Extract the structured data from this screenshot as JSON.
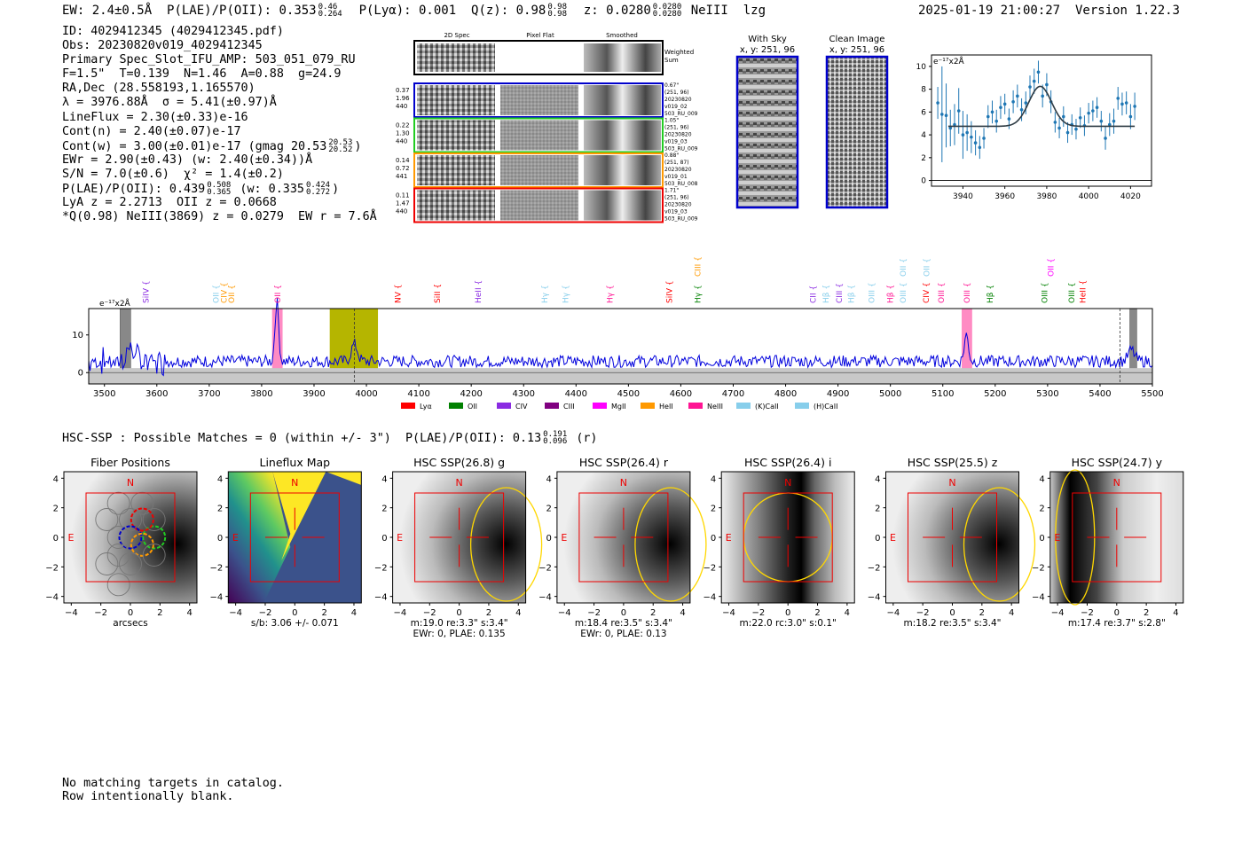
{
  "header": {
    "ew": "EW: 2.4±0.5Å",
    "plae_label": "P(LAE)/P(OII):",
    "plae_value": "0.353",
    "plae_hi": "0.46",
    "plae_lo": "0.264",
    "plya": "P(Lyα): 0.001",
    "qz_label": "Q(z):",
    "qz_value": "0.98",
    "qz_hi": "0.98",
    "qz_lo": "0.98",
    "z_label": "z:",
    "z_value": "0.0280",
    "z_hi": "0.0280",
    "z_lo": "0.0280",
    "line_id": "NeIII",
    "flag": "lzg",
    "datetime": "2025-01-19 21:00:27",
    "version": "Version 1.22.3"
  },
  "info": {
    "id": "ID: 4029412345 (4029412345.pdf)",
    "obs": "Obs: 20230820v019_4029412345",
    "primary": "Primary Spec_Slot_IFU_AMP: 503_051_079_RU",
    "params": "F=1.5\"  T=0.139  N=1.46  A=0.88  g=24.9",
    "radec": "RA,Dec (28.558193,1.165570)",
    "lambda_sigma": "λ = 3976.88Å  σ = 5.41(±0.97)Å",
    "lineflux": "LineFlux = 2.30(±0.33)e-16",
    "cont_n": "Cont(n) = 2.40(±0.07)e-17",
    "cont_w": "Cont(w) = 3.00(±0.01)e-17 (gmag 20.53",
    "gmag_hi": "20.53",
    "gmag_lo": "20.52",
    "ewr": "EWr = 2.90(±0.43) (w: 2.40(±0.34))Å",
    "sn": "S/N = 7.0(±0.6)  χ² = 1.4(±0.2)",
    "plae2": "P(LAE)/P(OII): 0.439",
    "plae2_hi": "0.508",
    "plae2_lo": "0.365",
    "plae2_w": "(w: 0.335",
    "plae2_w_hi": "0.424",
    "plae2_w_lo": "0.272",
    "lya_oii": "LyA z = 2.2713  OII z = 0.0668",
    "qline": "*Q(0.98) NeIII(3869) z = 0.0279  EW r = 7.6Å"
  },
  "cutouts": {
    "col_labels": [
      "2D Spec",
      "Pixel Flat",
      "Smoothed"
    ],
    "weighted_sum": [
      "Weighted",
      "Sum"
    ],
    "rows": [
      {
        "left": [
          "0.37",
          "1.96",
          "440"
        ],
        "right": [
          "0.67\"",
          "(251, 96)",
          "20230820",
          "v019_02",
          "503_RU_009"
        ],
        "color": "#0000cc"
      },
      {
        "left": [
          "0.22",
          "1.30",
          "440"
        ],
        "right": [
          "1.05\"",
          "(251, 96)",
          "20230820",
          "v019_03",
          "503_RU_009"
        ],
        "color": "#22cc22"
      },
      {
        "left": [
          "0.14",
          "0.72",
          "441"
        ],
        "right": [
          "0.88\"",
          "(251, 87)",
          "20230820",
          "v019_01",
          "503_RU_008"
        ],
        "color": "#ff9900"
      },
      {
        "left": [
          "0.11",
          "1.47",
          "440"
        ],
        "right": [
          "1.71\"",
          "(251, 96)",
          "20230820",
          "v019_03",
          "503_RU_009"
        ],
        "color": "#ee0000"
      }
    ],
    "with_sky": [
      "With Sky",
      "x, y: 251, 96"
    ],
    "clean_image": [
      "Clean Image",
      "x, y: 251, 96"
    ]
  },
  "colors": {
    "spectrum": "#0000dd",
    "fit": "#2e3b44",
    "zoom_points": "#1f77b4",
    "yellow_band": "#b5b500",
    "pink_band": "#ff6eb4"
  },
  "chart_data": [
    {
      "type": "line",
      "title": "",
      "ylabel": "e⁻¹⁷x2Å",
      "xlim": [
        3925,
        4030
      ],
      "ylim": [
        -0.5,
        11
      ],
      "xticks": [
        3940,
        3960,
        3980,
        4000,
        4020
      ],
      "yticks": [
        0,
        2,
        4,
        6,
        8,
        10
      ],
      "points": {
        "x": [
          3928,
          3930,
          3932,
          3934,
          3936,
          3938,
          3940,
          3942,
          3944,
          3946,
          3948,
          3950,
          3952,
          3954,
          3956,
          3958,
          3960,
          3962,
          3964,
          3966,
          3968,
          3970,
          3972,
          3974,
          3976,
          3978,
          3980,
          3982,
          3984,
          3986,
          3988,
          3990,
          3992,
          3994,
          3996,
          3998,
          4000,
          4002,
          4004,
          4006,
          4008,
          4010,
          4012,
          4014,
          4016,
          4018,
          4020,
          4022
        ],
        "y": [
          6.8,
          5.8,
          5.7,
          4.6,
          4.9,
          6.1,
          4.0,
          4.2,
          3.8,
          3.3,
          2.9,
          3.7,
          5.6,
          6.0,
          5.2,
          6.4,
          6.7,
          5.4,
          6.9,
          7.4,
          6.2,
          6.8,
          8.2,
          8.7,
          9.5,
          7.4,
          8.4,
          6.9,
          5.1,
          4.6,
          5.6,
          4.2,
          4.9,
          4.5,
          5.5,
          4.8,
          5.9,
          6.1,
          6.4,
          5.2,
          3.7,
          4.9,
          5.2,
          7.2,
          6.7,
          6.8,
          5.6,
          6.5
        ],
        "err": [
          1.4,
          4.2,
          2.8,
          1.6,
          1.8,
          2.0,
          2.1,
          1.6,
          1.4,
          1.1,
          1.0,
          0.9,
          1.0,
          1.0,
          1.0,
          1.0,
          0.9,
          0.9,
          1.0,
          1.0,
          1.0,
          1.0,
          1.0,
          1.1,
          1.0,
          1.0,
          1.0,
          1.0,
          0.9,
          0.9,
          0.9,
          0.9,
          0.9,
          0.9,
          0.9,
          0.9,
          0.9,
          0.9,
          0.9,
          0.9,
          1.0,
          1.0,
          1.1,
          1.0,
          1.0,
          1.0,
          1.1,
          1.2
        ]
      },
      "fit": {
        "center": 3976.88,
        "sigma": 5.41,
        "continuum": 4.75,
        "amplitude": 3.5,
        "xrange": [
          3933,
          4022
        ]
      }
    },
    {
      "type": "line",
      "title": "",
      "ylabel": "e⁻¹⁷x2Å",
      "xlim": [
        3470,
        5500
      ],
      "ylim": [
        -3,
        17
      ],
      "xticks": [
        3500,
        3600,
        3700,
        3800,
        3900,
        4000,
        4100,
        4200,
        4300,
        4400,
        4500,
        4600,
        4700,
        4800,
        4900,
        5000,
        5100,
        5200,
        5300,
        5400,
        5500
      ],
      "yticks": [
        0,
        10
      ],
      "continuum_level": 3.0,
      "peaks": [
        {
          "x": 3550,
          "y": 3.5,
          "w": 8
        },
        {
          "x": 3829,
          "y": 16,
          "w": 3.5
        },
        {
          "x": 3977,
          "y": 4.5,
          "w": 6
        },
        {
          "x": 5145,
          "y": 7,
          "w": 4
        },
        {
          "x": 5460,
          "y": 3,
          "w": 6
        }
      ],
      "yellow_band": [
        3930,
        4022
      ],
      "pink_bands": [
        [
          3820,
          3840
        ],
        [
          5136,
          5156
        ]
      ],
      "gray_bands": [
        [
          3530,
          3550
        ],
        [
          5457,
          5470
        ]
      ],
      "dashed_lines": [
        3976.88,
        5438
      ],
      "line_labels": [
        {
          "label": "SiIV",
          "x": 3579,
          "color": "#8a2be2",
          "tier": 1
        },
        {
          "label": "OII",
          "x": 3713,
          "color": "#87ceeb",
          "tier": 1
        },
        {
          "label": "CIV",
          "x": 3728,
          "color": "#ff9900",
          "tier": 1
        },
        {
          "label": "OII",
          "x": 3743,
          "color": "#ff9900",
          "tier": 1
        },
        {
          "label": "OII",
          "x": 3831,
          "color": "#ff1493",
          "tier": 1
        },
        {
          "label": "NV",
          "x": 4060,
          "color": "#ff0000",
          "tier": 1
        },
        {
          "label": "SiII",
          "x": 4135,
          "color": "#ff0000",
          "tier": 1
        },
        {
          "label": "HeII",
          "x": 4213,
          "color": "#8a2be2",
          "tier": 1
        },
        {
          "label": "Hγ",
          "x": 4340,
          "color": "#87ceeb",
          "tier": 1
        },
        {
          "label": "Hγ",
          "x": 4380,
          "color": "#87ceeb",
          "tier": 1
        },
        {
          "label": "Hγ",
          "x": 4465,
          "color": "#ff1493",
          "tier": 1
        },
        {
          "label": "SiIV",
          "x": 4578,
          "color": "#ff0000",
          "tier": 1
        },
        {
          "label": "Hγ",
          "x": 4632,
          "color": "#008000",
          "tier": 1
        },
        {
          "label": "CIII",
          "x": 4632,
          "color": "#ff9900",
          "tier": 2
        },
        {
          "label": "CII",
          "x": 4852,
          "color": "#8a2be2",
          "tier": 1
        },
        {
          "label": "Hβ",
          "x": 4877,
          "color": "#87ceeb",
          "tier": 1
        },
        {
          "label": "CIII",
          "x": 4902,
          "color": "#8a2be2",
          "tier": 1
        },
        {
          "label": "Hβ",
          "x": 4925,
          "color": "#87ceeb",
          "tier": 1
        },
        {
          "label": "OIII",
          "x": 4964,
          "color": "#87ceeb",
          "tier": 1
        },
        {
          "label": "Hβ",
          "x": 5000,
          "color": "#ff1493",
          "tier": 1
        },
        {
          "label": "OIII",
          "x": 5024,
          "color": "#87ceeb",
          "tier": 1
        },
        {
          "label": "OII",
          "x": 5024,
          "color": "#87ceeb",
          "tier": 2
        },
        {
          "label": "CIV",
          "x": 5068,
          "color": "#ff0000",
          "tier": 1
        },
        {
          "label": "OIII",
          "x": 5097,
          "color": "#ff1493",
          "tier": 1
        },
        {
          "label": "OII",
          "x": 5069,
          "color": "#87ceeb",
          "tier": 2
        },
        {
          "label": "OIII",
          "x": 5146,
          "color": "#ff1493",
          "tier": 1
        },
        {
          "label": "Hβ",
          "x": 5190,
          "color": "#008000",
          "tier": 1
        },
        {
          "label": "OIII",
          "x": 5294,
          "color": "#008000",
          "tier": 1
        },
        {
          "label": "OII",
          "x": 5306,
          "color": "#ff00ff",
          "tier": 2
        },
        {
          "label": "OIII",
          "x": 5346,
          "color": "#008000",
          "tier": 1
        },
        {
          "label": "HeII",
          "x": 5367,
          "color": "#ff0000",
          "tier": 1
        }
      ],
      "legend": [
        {
          "label": "Lyα",
          "color": "#ff0000"
        },
        {
          "label": "OII",
          "color": "#008000"
        },
        {
          "label": "CIV",
          "color": "#8a2be2"
        },
        {
          "label": "CIII",
          "color": "#800080"
        },
        {
          "label": "MgII",
          "color": "#ff00ff"
        },
        {
          "label": "HeII",
          "color": "#ff9900"
        },
        {
          "label": "NeIII",
          "color": "#ff1493"
        },
        {
          "label": "(K)CaII",
          "color": "#87ceeb"
        },
        {
          "label": "(H)CaII",
          "color": "#87ceeb"
        }
      ]
    }
  ],
  "hsc": {
    "line_text": "HSC-SSP : Possible Matches = 0 (within +/- 3\")  P(LAE)/P(OII): 0.13",
    "line_hi": "0.191",
    "line_lo": "0.096",
    "line_suffix": "(r)",
    "panels": [
      {
        "title": "Fiber Positions",
        "caption1": "arcsecs",
        "caption2": "",
        "kind": "fibers"
      },
      {
        "title": "Lineflux Map",
        "caption1": "s/b: 3.06 +/- 0.071",
        "caption2": "",
        "kind": "lineflux"
      },
      {
        "title": "HSC SSP(26.8) g",
        "caption1": "m:19.0  re:3.3\"  s:3.4\"",
        "caption2": "EWr: 0, PLAE: 0.135",
        "kind": "g"
      },
      {
        "title": "HSC SSP(26.4) r",
        "caption1": "m:18.4  re:3.5\"  s:3.4\"",
        "caption2": "EWr: 0, PLAE: 0.13",
        "kind": "r"
      },
      {
        "title": "HSC SSP(26.4) i",
        "caption1": "m:22.0 rc:3.0\"  s:0.1\"",
        "caption2": "",
        "kind": "i"
      },
      {
        "title": "HSC SSP(25.5) z",
        "caption1": "m:18.2  re:3.5\"  s:3.4\"",
        "caption2": "",
        "kind": "z"
      },
      {
        "title": "HSC SSP(24.7) y",
        "caption1": "m:17.4  re:3.7\"  s:2.8\"",
        "caption2": "",
        "kind": "y"
      }
    ],
    "axis_ticks": [
      "−4",
      "−2",
      "0",
      "2",
      "4"
    ],
    "north_label": "N",
    "east_label": "E"
  },
  "footer": {
    "line1": "No matching targets in catalog.",
    "line2": "Row intentionally blank."
  }
}
